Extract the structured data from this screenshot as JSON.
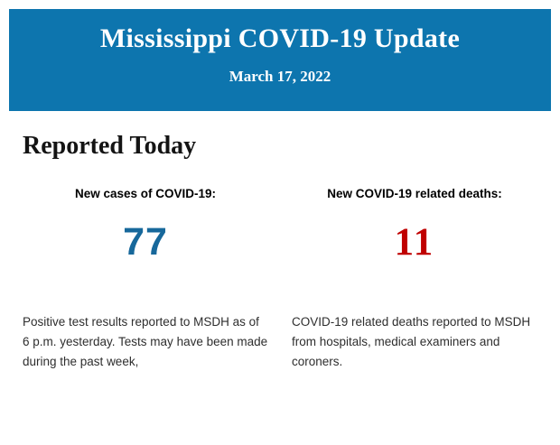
{
  "header": {
    "title": "Mississippi COVID-19 Update",
    "date": "March 17, 2022",
    "bg_color": "#0d75ae",
    "text_color": "#ffffff"
  },
  "main": {
    "section_title": "Reported Today",
    "stats": [
      {
        "label": "New cases of COVID-19:",
        "value": "77",
        "value_color": "#17689b",
        "description": "Positive test results reported to MSDH as of 6 p.m. yesterday. Tests may have been made during the past week,"
      },
      {
        "label": "New COVID-19 related deaths:",
        "value": "11",
        "value_color": "#c00000",
        "description": "COVID-19 related deaths reported to MSDH from hospitals, medical examiners and coroners."
      }
    ]
  }
}
